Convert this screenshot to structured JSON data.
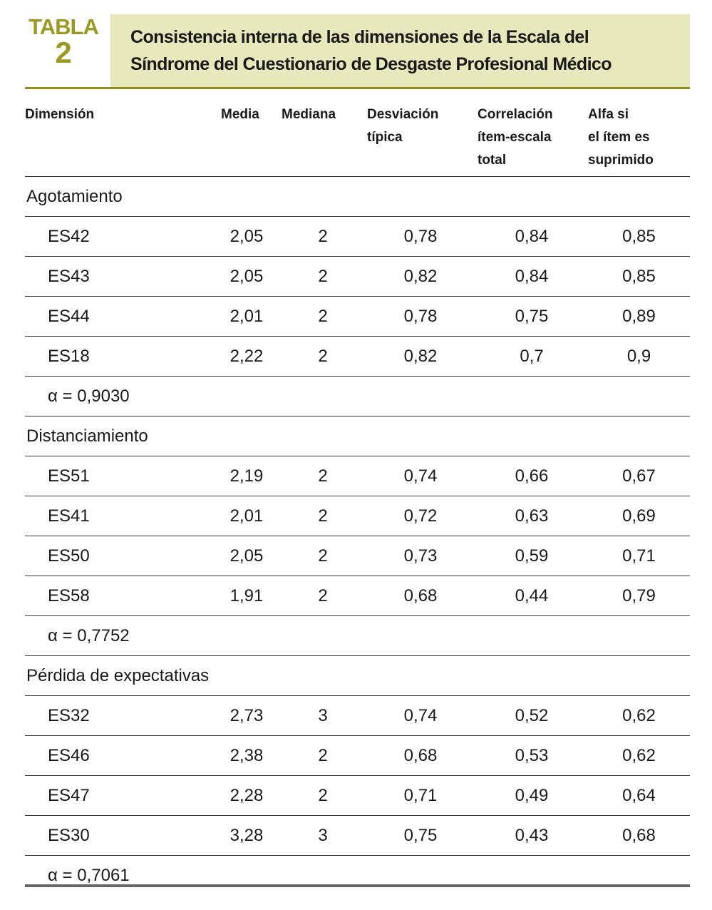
{
  "header": {
    "label": "TABLA",
    "number": "2",
    "title": [
      "Consistencia interna de las dimensiones de la Escala del",
      "Síndrome del Cuestionario de Desgaste Profesional Médico"
    ]
  },
  "table": {
    "columns": [
      [
        "Dimensión"
      ],
      [
        "Media"
      ],
      [
        "Mediana"
      ],
      [
        "Desviación",
        "típica"
      ],
      [
        "Correlación",
        "ítem-escala",
        "total"
      ],
      [
        "Alfa si",
        "el ítem es",
        "suprimido"
      ]
    ],
    "groups": [
      {
        "name": "Agotamiento",
        "rows": [
          [
            "ES42",
            "2,05",
            "2",
            "0,78",
            "0,84",
            "0,85"
          ],
          [
            "ES43",
            "2,05",
            "2",
            "0,82",
            "0,84",
            "0,85"
          ],
          [
            "ES44",
            "2,01",
            "2",
            "0,78",
            "0,75",
            "0,89"
          ],
          [
            "ES18",
            "2,22",
            "2",
            "0,82",
            "0,7",
            "0,9"
          ]
        ],
        "alpha": "α = 0,9030"
      },
      {
        "name": "Distanciamiento",
        "rows": [
          [
            "ES51",
            "2,19",
            "2",
            "0,74",
            "0,66",
            "0,67"
          ],
          [
            "ES41",
            "2,01",
            "2",
            "0,72",
            "0,63",
            "0,69"
          ],
          [
            "ES50",
            "2,05",
            "2",
            "0,73",
            "0,59",
            "0,71"
          ],
          [
            "ES58",
            "1,91",
            "2",
            "0,68",
            "0,44",
            "0,79"
          ]
        ],
        "alpha": "α = 0,7752"
      },
      {
        "name": "Pérdida de expectativas",
        "rows": [
          [
            "ES32",
            "2,73",
            "3",
            "0,74",
            "0,52",
            "0,62"
          ],
          [
            "ES46",
            "2,38",
            "2",
            "0,68",
            "0,53",
            "0,62"
          ],
          [
            "ES47",
            "2,28",
            "2",
            "0,71",
            "0,49",
            "0,64"
          ],
          [
            "ES30",
            "3,28",
            "3",
            "0,75",
            "0,43",
            "0,68"
          ]
        ],
        "alpha": "α = 0,7061"
      }
    ]
  }
}
